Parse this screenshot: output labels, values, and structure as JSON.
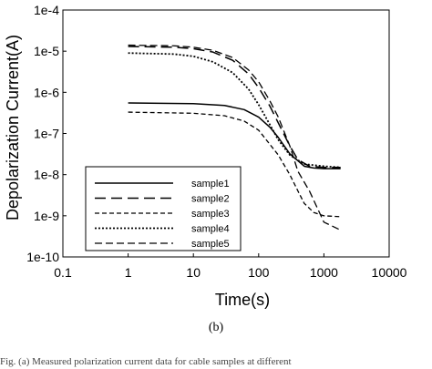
{
  "chart_data": {
    "type": "line",
    "xlabel": "Time(s)",
    "ylabel": "Depolarization Current(A)",
    "xscale": "log",
    "yscale": "log",
    "xlim": [
      0.1,
      10000
    ],
    "ylim": [
      1e-10,
      0.0001
    ],
    "x_ticks": [
      "0.1",
      "1",
      "10",
      "100",
      "1000",
      "10000"
    ],
    "y_ticks": [
      "1e-10",
      "1e-9",
      "1e-8",
      "1e-7",
      "1e-6",
      "1e-5",
      "1e-4"
    ],
    "grid": false,
    "legend_position": "bottom-left",
    "series": [
      {
        "name": "sample1",
        "style": "solid",
        "points": [
          [
            1,
            5.5e-07
          ],
          [
            10,
            5.3e-07
          ],
          [
            30,
            4.8e-07
          ],
          [
            60,
            3.8e-07
          ],
          [
            100,
            2.5e-07
          ],
          [
            150,
            1.4e-07
          ],
          [
            200,
            8e-08
          ],
          [
            300,
            3.2e-08
          ],
          [
            500,
            1.6e-08
          ],
          [
            700,
            1.45e-08
          ],
          [
            1000,
            1.4e-08
          ],
          [
            1800,
            1.4e-08
          ]
        ]
      },
      {
        "name": "sample2",
        "style": "long-dash",
        "points": [
          [
            1,
            1.3e-05
          ],
          [
            5,
            1.25e-05
          ],
          [
            10,
            1.15e-05
          ],
          [
            20,
            9.5e-06
          ],
          [
            40,
            6e-06
          ],
          [
            70,
            2.8e-06
          ],
          [
            100,
            1.3e-06
          ],
          [
            150,
            4.5e-07
          ],
          [
            200,
            1.8e-07
          ],
          [
            300,
            5e-08
          ],
          [
            400,
            2.3e-08
          ],
          [
            600,
            1.6e-08
          ],
          [
            1000,
            1.5e-08
          ],
          [
            1800,
            1.5e-08
          ]
        ]
      },
      {
        "name": "sample3",
        "style": "short-dash",
        "points": [
          [
            1,
            3.3e-07
          ],
          [
            10,
            3.1e-07
          ],
          [
            30,
            2.7e-07
          ],
          [
            60,
            2e-07
          ],
          [
            100,
            1.2e-07
          ],
          [
            200,
            3e-08
          ],
          [
            300,
            1e-08
          ],
          [
            400,
            4e-09
          ],
          [
            500,
            2e-09
          ],
          [
            700,
            1.2e-09
          ],
          [
            1000,
            1e-09
          ],
          [
            1800,
            9.5e-10
          ]
        ]
      },
      {
        "name": "sample4",
        "style": "dotted",
        "points": [
          [
            1,
            9e-06
          ],
          [
            5,
            8.5e-06
          ],
          [
            10,
            7.5e-06
          ],
          [
            20,
            5.5e-06
          ],
          [
            40,
            3e-06
          ],
          [
            70,
            1.2e-06
          ],
          [
            100,
            5e-07
          ],
          [
            150,
            1.6e-07
          ],
          [
            200,
            7e-08
          ],
          [
            300,
            3e-08
          ],
          [
            500,
            1.8e-08
          ],
          [
            1000,
            1.6e-08
          ],
          [
            1800,
            1.5e-08
          ]
        ]
      },
      {
        "name": "sample5",
        "style": "dash-medium",
        "points": [
          [
            1,
            1.4e-05
          ],
          [
            5,
            1.35e-05
          ],
          [
            10,
            1.25e-05
          ],
          [
            20,
            1.05e-05
          ],
          [
            40,
            7e-06
          ],
          [
            70,
            3.5e-06
          ],
          [
            100,
            1.8e-06
          ],
          [
            150,
            6e-07
          ],
          [
            200,
            2.5e-07
          ],
          [
            300,
            5e-08
          ],
          [
            400,
            1.2e-08
          ],
          [
            600,
            4e-09
          ],
          [
            1000,
            7e-10
          ],
          [
            1800,
            4.5e-10
          ]
        ]
      }
    ]
  },
  "panel_label": "(b)",
  "caption_text": "Fig. (a) Measured polarization current data for cable samples at different"
}
